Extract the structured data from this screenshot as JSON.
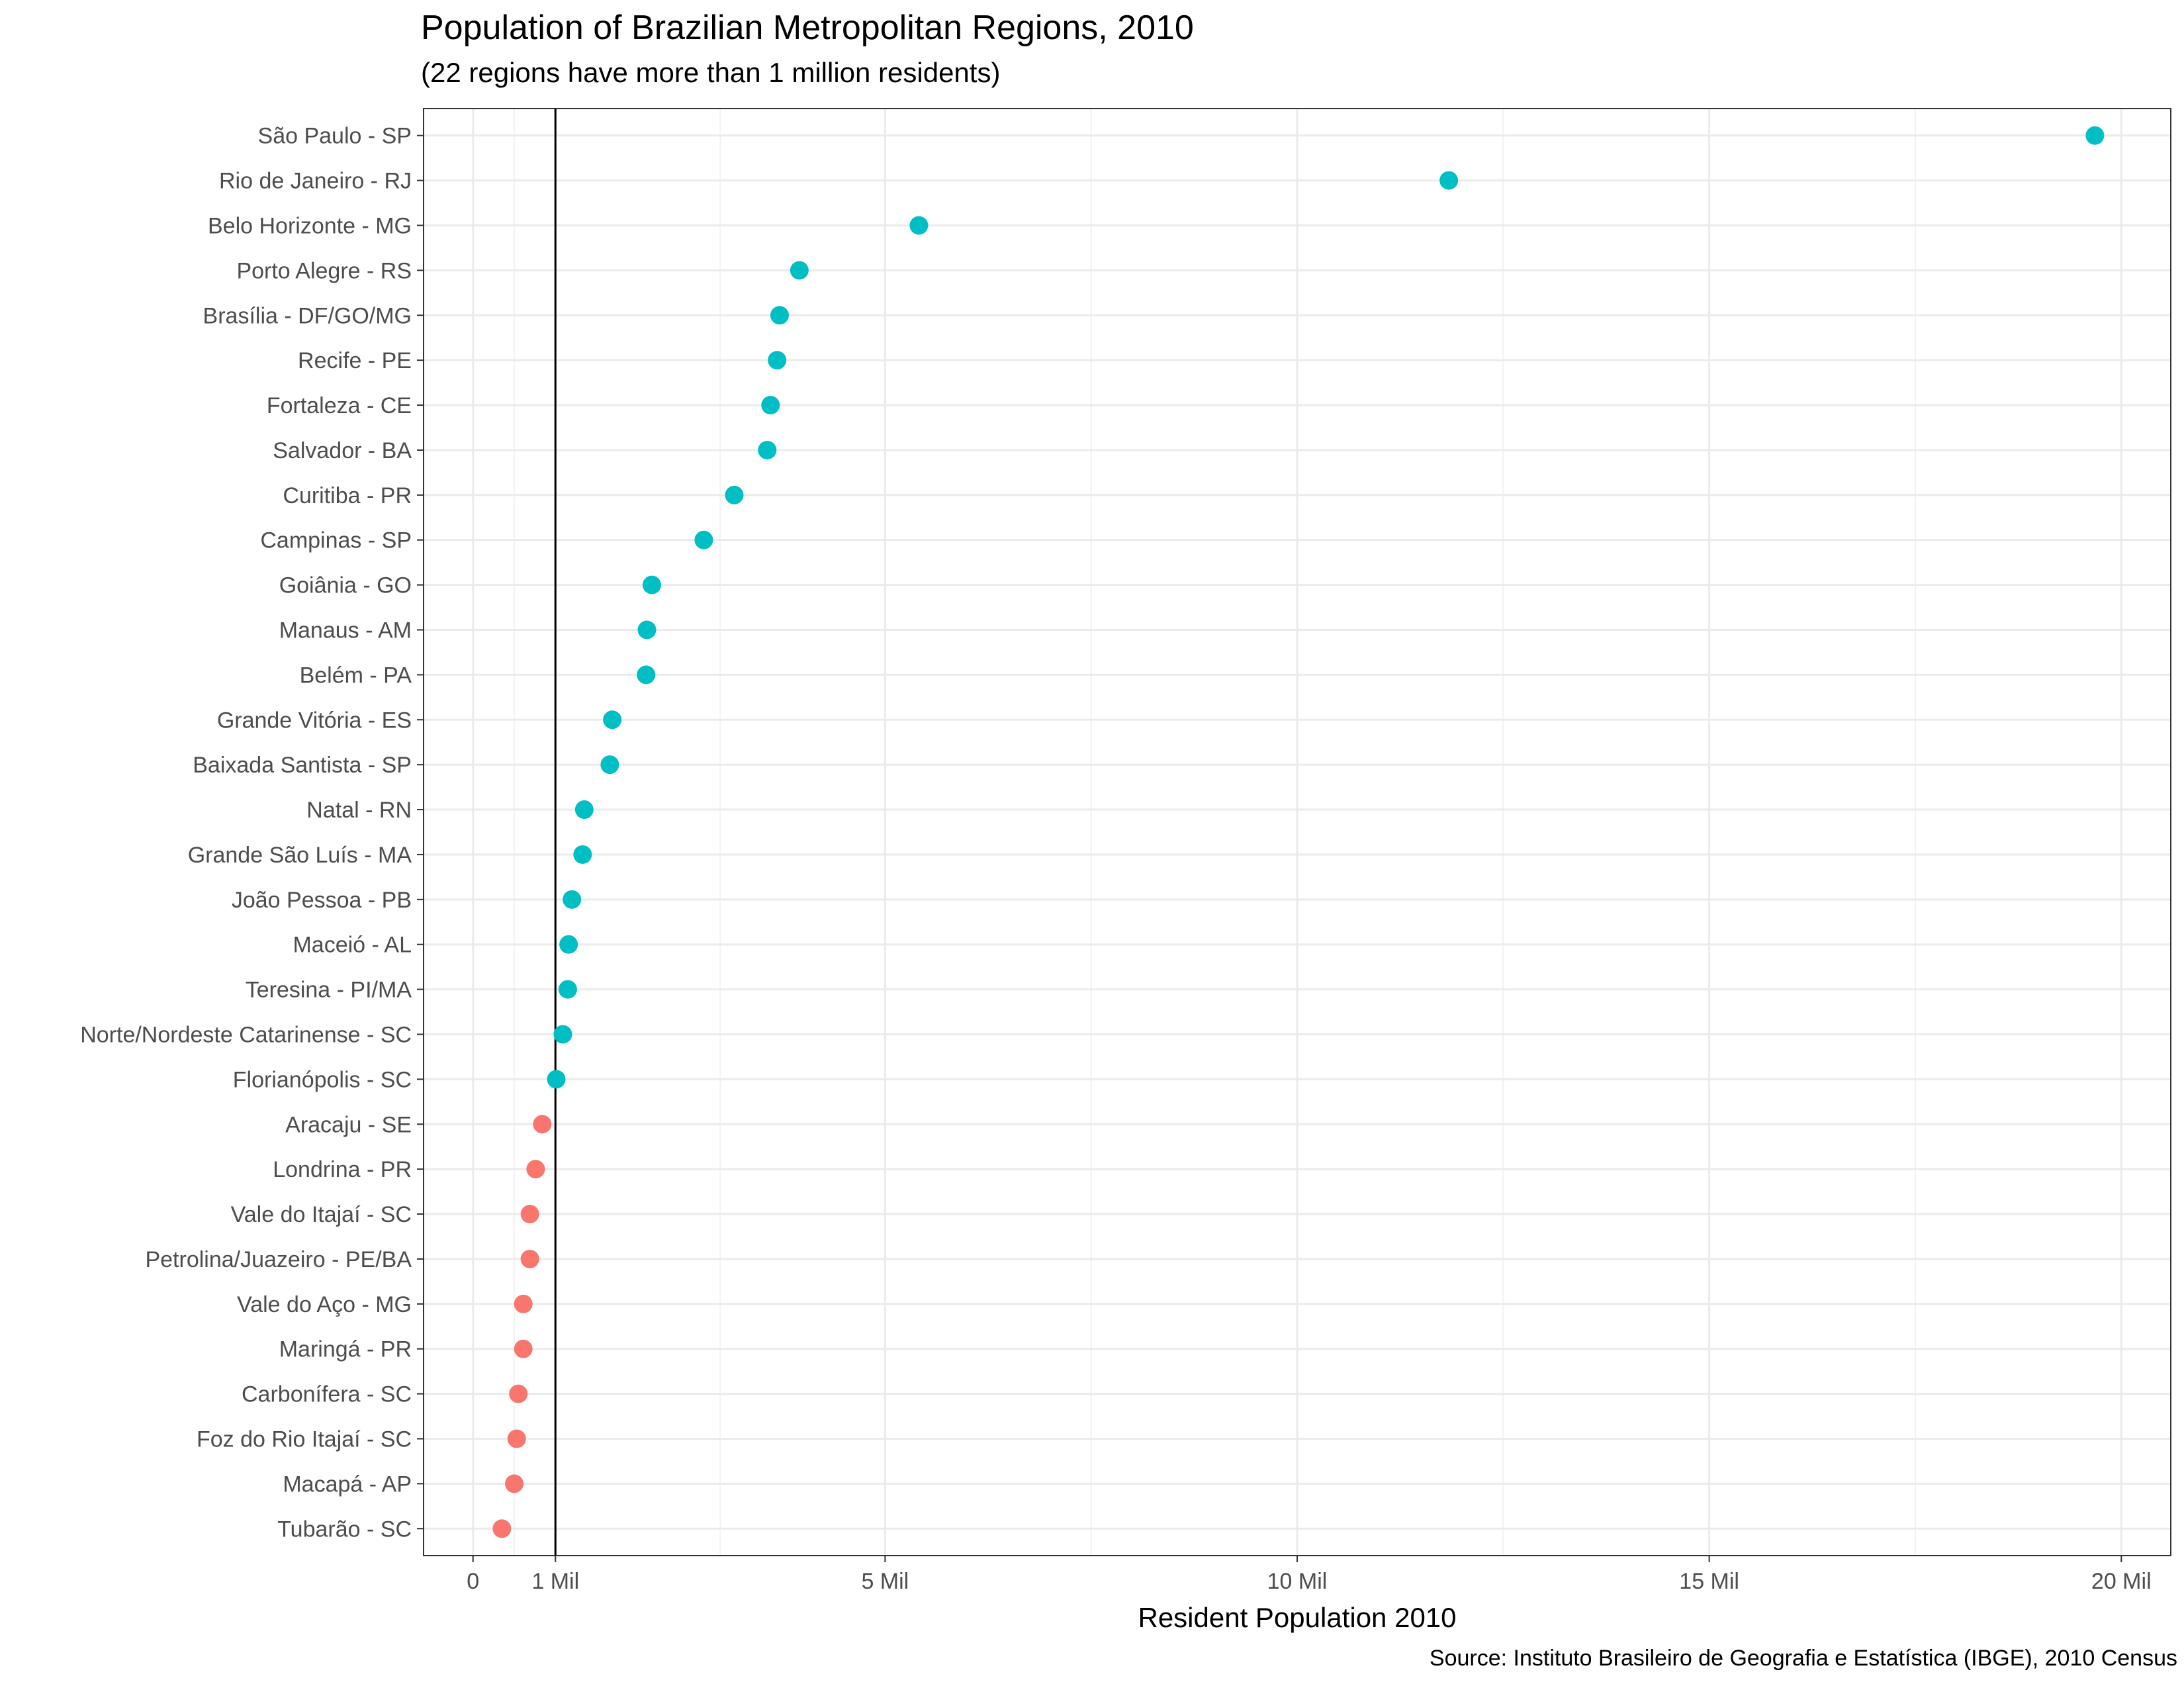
{
  "chart_data": {
    "type": "scatter",
    "title": "Population of Brazilian Metropolitan Regions, 2010",
    "subtitle": "(22 regions have more than 1 million residents)",
    "xlabel": "Resident Population 2010",
    "ylabel": "",
    "caption": "Source: Instituto Brasileiro de Geografia e Estatística (IBGE), 2010 Census",
    "xlim": [
      -0.6,
      20.6
    ],
    "x_ticks": [
      0,
      1,
      5,
      10,
      15,
      20
    ],
    "x_tick_labels": [
      "0",
      "1 Mil",
      "5 Mil",
      "10 Mil",
      "15 Mil",
      "20 Mil"
    ],
    "reference_line_x": 1,
    "grid": true,
    "legend": "none",
    "colors": {
      "above_1m": "#00BFC4",
      "below_1m": "#F8766D"
    },
    "points": [
      {
        "region": "São Paulo - SP",
        "population": 19.68,
        "group": "above_1m"
      },
      {
        "region": "Rio de Janeiro - RJ",
        "population": 11.84,
        "group": "above_1m"
      },
      {
        "region": "Belo Horizonte - MG",
        "population": 5.41,
        "group": "above_1m"
      },
      {
        "region": "Porto Alegre - RS",
        "population": 3.96,
        "group": "above_1m"
      },
      {
        "region": "Brasília - DF/GO/MG",
        "population": 3.72,
        "group": "above_1m"
      },
      {
        "region": "Recife - PE",
        "population": 3.69,
        "group": "above_1m"
      },
      {
        "region": "Fortaleza - CE",
        "population": 3.61,
        "group": "above_1m"
      },
      {
        "region": "Salvador - BA",
        "population": 3.57,
        "group": "above_1m"
      },
      {
        "region": "Curitiba - PR",
        "population": 3.17,
        "group": "above_1m"
      },
      {
        "region": "Campinas - SP",
        "population": 2.8,
        "group": "above_1m"
      },
      {
        "region": "Goiânia - GO",
        "population": 2.17,
        "group": "above_1m"
      },
      {
        "region": "Manaus - AM",
        "population": 2.11,
        "group": "above_1m"
      },
      {
        "region": "Belém - PA",
        "population": 2.1,
        "group": "above_1m"
      },
      {
        "region": "Grande Vitória - ES",
        "population": 1.69,
        "group": "above_1m"
      },
      {
        "region": "Baixada Santista - SP",
        "population": 1.66,
        "group": "above_1m"
      },
      {
        "region": "Natal - RN",
        "population": 1.35,
        "group": "above_1m"
      },
      {
        "region": "Grande São Luís - MA",
        "population": 1.33,
        "group": "above_1m"
      },
      {
        "region": "João Pessoa - PB",
        "population": 1.2,
        "group": "above_1m"
      },
      {
        "region": "Maceió - AL",
        "population": 1.16,
        "group": "above_1m"
      },
      {
        "region": "Teresina - PI/MA",
        "population": 1.15,
        "group": "above_1m"
      },
      {
        "region": "Norte/Nordeste Catarinense - SC",
        "population": 1.09,
        "group": "above_1m"
      },
      {
        "region": "Florianópolis - SC",
        "population": 1.01,
        "group": "above_1m"
      },
      {
        "region": "Aracaju - SE",
        "population": 0.84,
        "group": "below_1m"
      },
      {
        "region": "Londrina - PR",
        "population": 0.76,
        "group": "below_1m"
      },
      {
        "region": "Vale do Itajaí - SC",
        "population": 0.69,
        "group": "below_1m"
      },
      {
        "region": "Petrolina/Juazeiro - PE/BA",
        "population": 0.69,
        "group": "below_1m"
      },
      {
        "region": "Vale do Aço - MG",
        "population": 0.61,
        "group": "below_1m"
      },
      {
        "region": "Maringá - PR",
        "population": 0.61,
        "group": "below_1m"
      },
      {
        "region": "Carbonífera - SC",
        "population": 0.55,
        "group": "below_1m"
      },
      {
        "region": "Foz do Rio Itajaí - SC",
        "population": 0.53,
        "group": "below_1m"
      },
      {
        "region": "Macapá - AP",
        "population": 0.5,
        "group": "below_1m"
      },
      {
        "region": "Tubarão - SC",
        "population": 0.35,
        "group": "below_1m"
      }
    ]
  }
}
